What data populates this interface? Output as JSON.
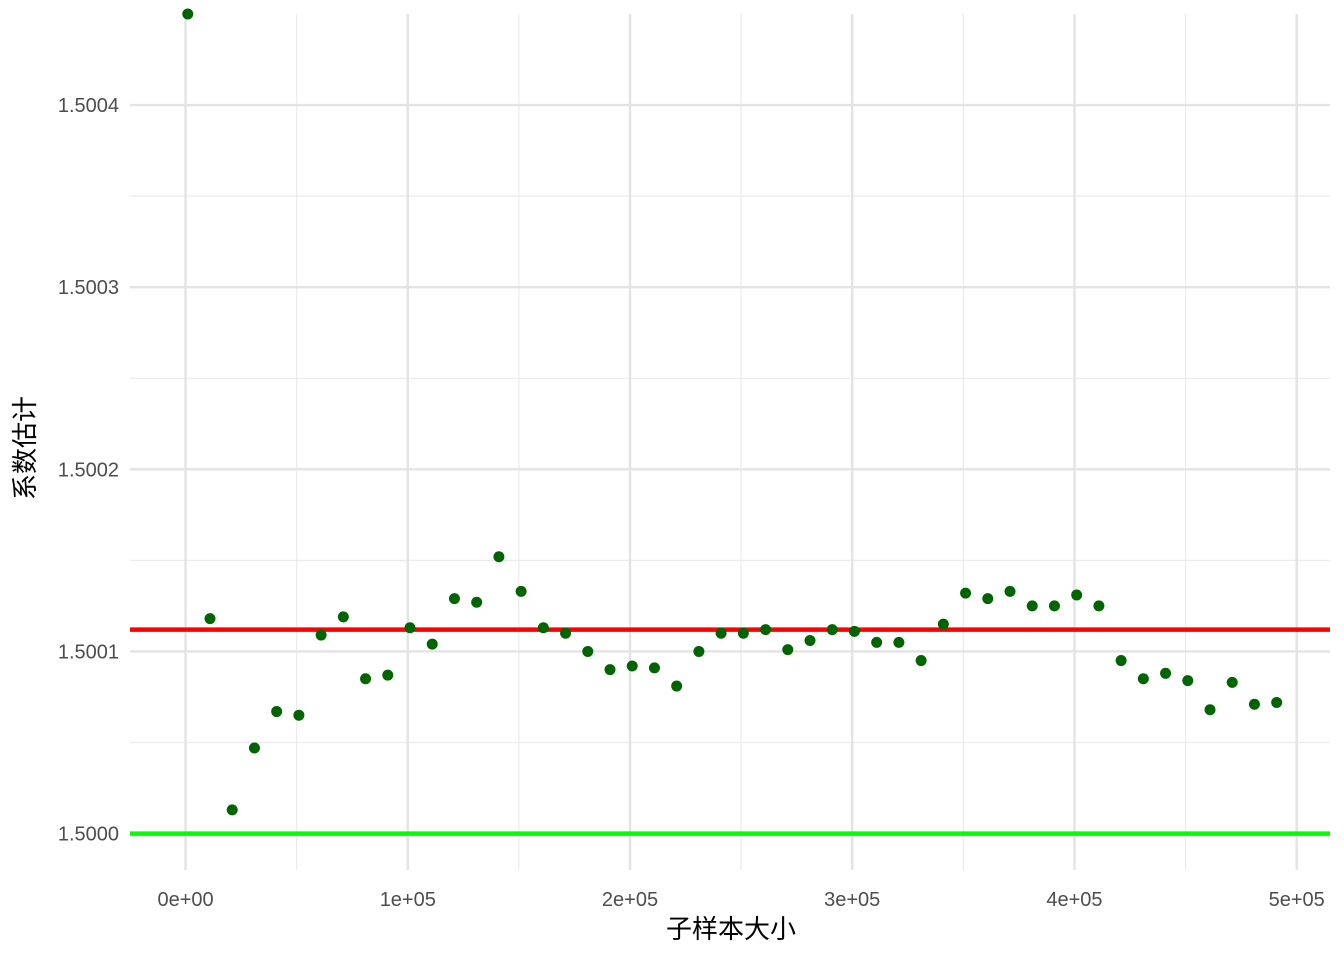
{
  "chart_data": {
    "type": "scatter",
    "title": "",
    "xlabel": "子样本大小",
    "ylabel": "系数估计",
    "xlim": [
      -25000,
      515000
    ],
    "ylim": [
      1.49998,
      1.50045
    ],
    "x_ticks": [
      {
        "value": 0,
        "label": "0e+00"
      },
      {
        "value": 100000,
        "label": "1e+05"
      },
      {
        "value": 200000,
        "label": "2e+05"
      },
      {
        "value": 300000,
        "label": "3e+05"
      },
      {
        "value": 400000,
        "label": "4e+05"
      },
      {
        "value": 500000,
        "label": "5e+05"
      }
    ],
    "x_minor_ticks": [
      50000,
      150000,
      250000,
      350000,
      450000
    ],
    "y_ticks": [
      {
        "value": 1.5,
        "label": "1.5000"
      },
      {
        "value": 1.5001,
        "label": "1.5001"
      },
      {
        "value": 1.5002,
        "label": "1.5002"
      },
      {
        "value": 1.5003,
        "label": "1.5003"
      },
      {
        "value": 1.5004,
        "label": "1.5004"
      }
    ],
    "y_minor_ticks": [
      1.50005,
      1.50015,
      1.50025,
      1.50035
    ],
    "grid": true,
    "point_color": "#006400",
    "series": [
      {
        "x": [
          1000,
          11000,
          21000,
          31000,
          41000,
          51000,
          61000,
          71000,
          81000,
          91000,
          101000,
          111000,
          121000,
          131000,
          141000,
          151000,
          161000,
          171000,
          181000,
          191000,
          201000,
          211000,
          221000,
          231000,
          241000,
          251000,
          261000,
          271000,
          281000,
          291000,
          301000,
          311000,
          321000,
          331000,
          341000,
          351000,
          361000,
          371000,
          381000,
          391000,
          401000,
          411000,
          421000,
          431000,
          441000,
          451000,
          461000,
          471000,
          481000,
          491000
        ],
        "y": [
          1.50045,
          1.500118,
          1.500013,
          1.500047,
          1.500067,
          1.500065,
          1.500109,
          1.500119,
          1.500085,
          1.500087,
          1.500113,
          1.500104,
          1.500129,
          1.500127,
          1.500152,
          1.500133,
          1.500113,
          1.50011,
          1.5001,
          1.50009,
          1.500092,
          1.500091,
          1.500081,
          1.5001,
          1.50011,
          1.50011,
          1.500112,
          1.500101,
          1.500106,
          1.500112,
          1.500111,
          1.500105,
          1.500105,
          1.500095,
          1.500115,
          1.500132,
          1.500129,
          1.500133,
          1.500125,
          1.500125,
          1.500131,
          1.500125,
          1.500095,
          1.500085,
          1.500088,
          1.500084,
          1.500068,
          1.500083,
          1.500071,
          1.500072
        ]
      }
    ],
    "reference_lines": [
      {
        "y": 1.500112,
        "color": "#ff0000"
      },
      {
        "y": 1.5,
        "color": "#00ff00"
      }
    ]
  }
}
